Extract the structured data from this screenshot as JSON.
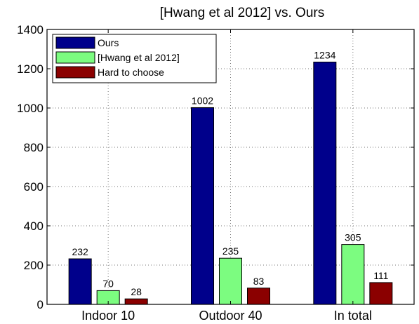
{
  "chart_data": {
    "type": "bar",
    "title": "[Hwang et al 2012] vs. Ours",
    "xlabel": "",
    "ylabel": "",
    "categories": [
      "Indoor 10",
      "Outdoor 40",
      "In total"
    ],
    "series": [
      {
        "name": "Ours",
        "values": [
          232,
          1002,
          1234
        ],
        "color": "#00008B"
      },
      {
        "name": "[Hwang et al 2012]",
        "values": [
          70,
          235,
          305
        ],
        "color": "#7CFC80"
      },
      {
        "name": "Hard to choose",
        "values": [
          28,
          83,
          111
        ],
        "color": "#8B0000"
      }
    ],
    "ylim": [
      0,
      1400
    ],
    "yticks": [
      0,
      200,
      400,
      600,
      800,
      1000,
      1200,
      1400
    ],
    "grid": true,
    "legend_position": "top-left",
    "data_labels": true
  }
}
